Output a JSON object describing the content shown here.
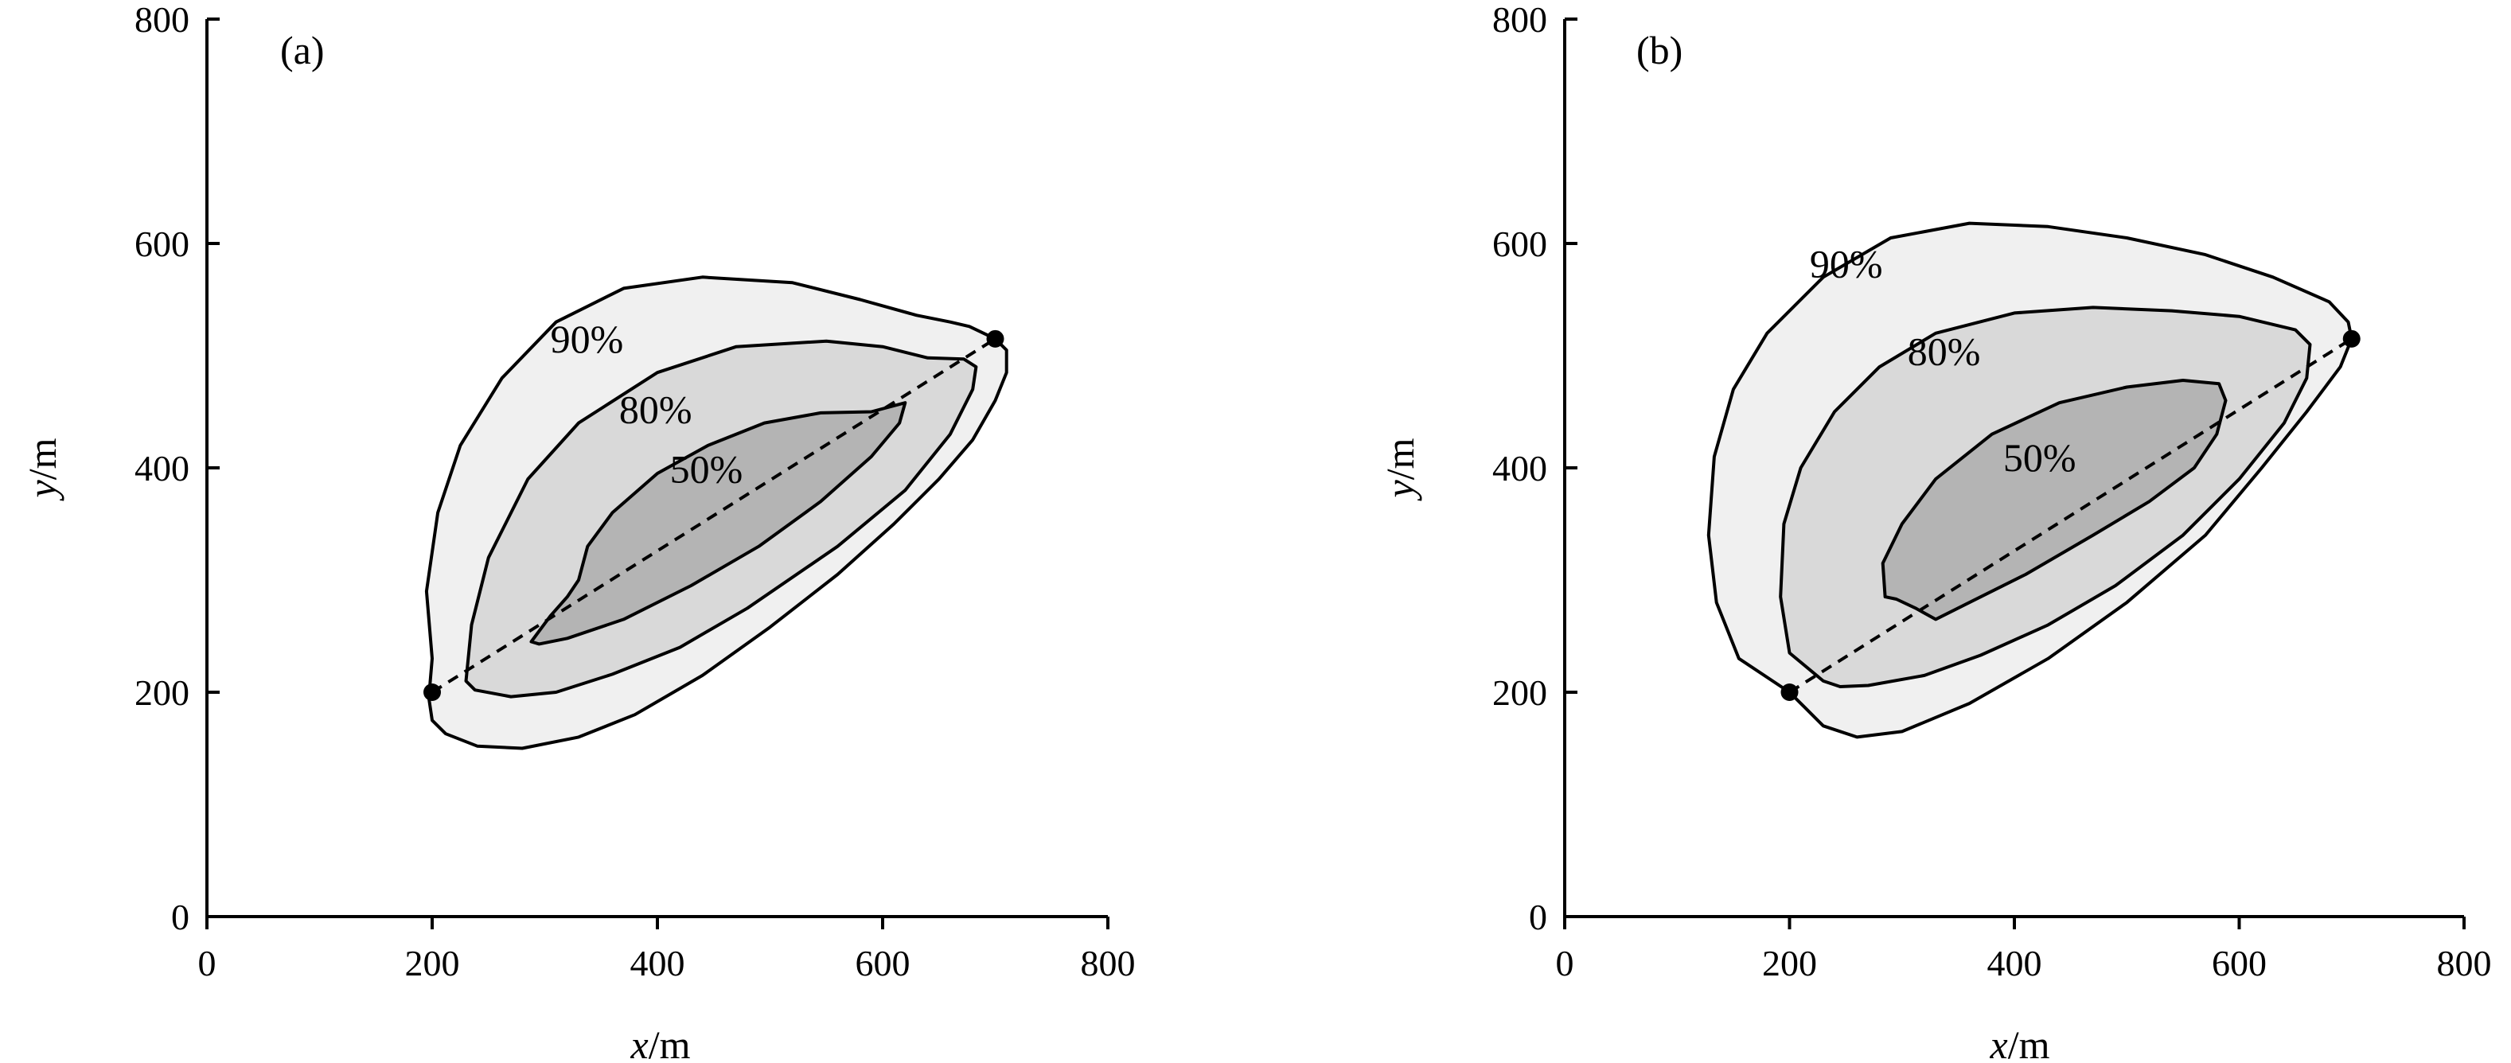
{
  "chart_data": [
    {
      "type": "contour",
      "panel_label": "(a)",
      "xlabel": {
        "var": "x",
        "unit": "/m"
      },
      "ylabel": {
        "var": "y",
        "unit": "/m"
      },
      "xlim": [
        0,
        800
      ],
      "ylim": [
        0,
        800
      ],
      "xticks": [
        "0",
        "200",
        "400",
        "600",
        "800"
      ],
      "yticks": [
        "0",
        "200",
        "400",
        "600",
        "800"
      ],
      "fill_colors": {
        "c90": "#f0f0f0",
        "c80": "#d9d9d9",
        "c50": "#b4b4b4"
      },
      "endpoints": [
        {
          "x": 200,
          "y": 200
        },
        {
          "x": 700,
          "y": 515
        }
      ],
      "dashed_line": {
        "from": {
          "x": 200,
          "y": 200
        },
        "to": {
          "x": 700,
          "y": 515
        }
      },
      "contours": [
        {
          "level_label": "90%",
          "label_at": {
            "x": 305,
            "y": 503
          },
          "points": [
            [
              200,
              230
            ],
            [
              195,
              290
            ],
            [
              205,
              360
            ],
            [
              225,
              420
            ],
            [
              262,
              480
            ],
            [
              310,
              530
            ],
            [
              370,
              560
            ],
            [
              440,
              570
            ],
            [
              520,
              565
            ],
            [
              580,
              550
            ],
            [
              630,
              536
            ],
            [
              660,
              530
            ],
            [
              677,
              526
            ],
            [
              700,
              515
            ],
            [
              710,
              505
            ],
            [
              710,
              485
            ],
            [
              700,
              460
            ],
            [
              680,
              425
            ],
            [
              650,
              390
            ],
            [
              610,
              350
            ],
            [
              560,
              305
            ],
            [
              500,
              258
            ],
            [
              440,
              215
            ],
            [
              380,
              180
            ],
            [
              330,
              160
            ],
            [
              280,
              150
            ],
            [
              240,
              152
            ],
            [
              212,
              163
            ],
            [
              200,
              175
            ],
            [
              197,
              195
            ]
          ]
        },
        {
          "level_label": "80%",
          "label_at": {
            "x": 366,
            "y": 440
          },
          "points": [
            [
              230,
              210
            ],
            [
              235,
              260
            ],
            [
              250,
              320
            ],
            [
              285,
              390
            ],
            [
              330,
              440
            ],
            [
              400,
              485
            ],
            [
              470,
              508
            ],
            [
              550,
              513
            ],
            [
              600,
              508
            ],
            [
              640,
              498
            ],
            [
              672,
              497
            ],
            [
              683,
              490
            ],
            [
              680,
              470
            ],
            [
              660,
              430
            ],
            [
              620,
              380
            ],
            [
              560,
              330
            ],
            [
              480,
              275
            ],
            [
              420,
              240
            ],
            [
              360,
              216
            ],
            [
              310,
              200
            ],
            [
              270,
              196
            ],
            [
              238,
              202
            ]
          ]
        },
        {
          "level_label": "50%",
          "label_at": {
            "x": 411,
            "y": 387
          },
          "points": [
            [
              288,
              245
            ],
            [
              305,
              268
            ],
            [
              320,
              285
            ],
            [
              330,
              300
            ],
            [
              338,
              330
            ],
            [
              360,
              360
            ],
            [
              400,
              395
            ],
            [
              445,
              420
            ],
            [
              495,
              440
            ],
            [
              545,
              449
            ],
            [
              590,
              450
            ],
            [
              620,
              458
            ],
            [
              615,
              440
            ],
            [
              590,
              410
            ],
            [
              545,
              370
            ],
            [
              490,
              330
            ],
            [
              430,
              295
            ],
            [
              370,
              265
            ],
            [
              320,
              248
            ],
            [
              295,
              243
            ]
          ]
        }
      ]
    },
    {
      "type": "contour",
      "panel_label": "(b)",
      "xlabel": {
        "var": "x",
        "unit": "/m"
      },
      "ylabel": {
        "var": "y",
        "unit": "/m"
      },
      "xlim": [
        0,
        800
      ],
      "ylim": [
        0,
        800
      ],
      "xticks": [
        "0",
        "200",
        "400",
        "600",
        "800"
      ],
      "yticks": [
        "0",
        "200",
        "400",
        "600",
        "800"
      ],
      "fill_colors": {
        "c90": "#f0f0f0",
        "c80": "#d9d9d9",
        "c50": "#b4b4b4"
      },
      "endpoints": [
        {
          "x": 200,
          "y": 200
        },
        {
          "x": 700,
          "y": 515
        }
      ],
      "dashed_line": {
        "from": {
          "x": 200,
          "y": 200
        },
        "to": {
          "x": 700,
          "y": 515
        }
      },
      "contours": [
        {
          "level_label": "90%",
          "label_at": {
            "x": 218,
            "y": 570
          },
          "points": [
            [
              200,
              200
            ],
            [
              155,
              230
            ],
            [
              135,
              280
            ],
            [
              128,
              340
            ],
            [
              133,
              410
            ],
            [
              150,
              470
            ],
            [
              180,
              520
            ],
            [
              230,
              570
            ],
            [
              290,
              605
            ],
            [
              360,
              618
            ],
            [
              430,
              615
            ],
            [
              500,
              605
            ],
            [
              570,
              590
            ],
            [
              630,
              570
            ],
            [
              680,
              548
            ],
            [
              697,
              530
            ],
            [
              700,
              515
            ],
            [
              690,
              490
            ],
            [
              660,
              450
            ],
            [
              620,
              400
            ],
            [
              570,
              340
            ],
            [
              500,
              280
            ],
            [
              430,
              230
            ],
            [
              360,
              190
            ],
            [
              300,
              165
            ],
            [
              260,
              160
            ],
            [
              230,
              170
            ],
            [
              212,
              188
            ]
          ]
        },
        {
          "level_label": "80%",
          "label_at": {
            "x": 305,
            "y": 492
          },
          "points": [
            [
              230,
              210
            ],
            [
              200,
              235
            ],
            [
              192,
              285
            ],
            [
              195,
              350
            ],
            [
              210,
              400
            ],
            [
              240,
              450
            ],
            [
              280,
              490
            ],
            [
              330,
              520
            ],
            [
              400,
              538
            ],
            [
              470,
              543
            ],
            [
              540,
              540
            ],
            [
              600,
              535
            ],
            [
              650,
              523
            ],
            [
              663,
              510
            ],
            [
              660,
              480
            ],
            [
              640,
              440
            ],
            [
              600,
              390
            ],
            [
              550,
              340
            ],
            [
              490,
              295
            ],
            [
              430,
              260
            ],
            [
              370,
              233
            ],
            [
              320,
              215
            ],
            [
              270,
              206
            ],
            [
              245,
              205
            ]
          ]
        },
        {
          "level_label": "50%",
          "label_at": {
            "x": 390,
            "y": 397
          },
          "points": [
            [
              285,
              285
            ],
            [
              283,
              315
            ],
            [
              300,
              350
            ],
            [
              330,
              390
            ],
            [
              380,
              430
            ],
            [
              440,
              458
            ],
            [
              500,
              472
            ],
            [
              550,
              478
            ],
            [
              582,
              475
            ],
            [
              588,
              460
            ],
            [
              580,
              430
            ],
            [
              560,
              400
            ],
            [
              520,
              370
            ],
            [
              470,
              340
            ],
            [
              410,
              305
            ],
            [
              360,
              280
            ],
            [
              330,
              265
            ],
            [
              312,
              275
            ],
            [
              295,
              283
            ]
          ]
        }
      ]
    }
  ]
}
